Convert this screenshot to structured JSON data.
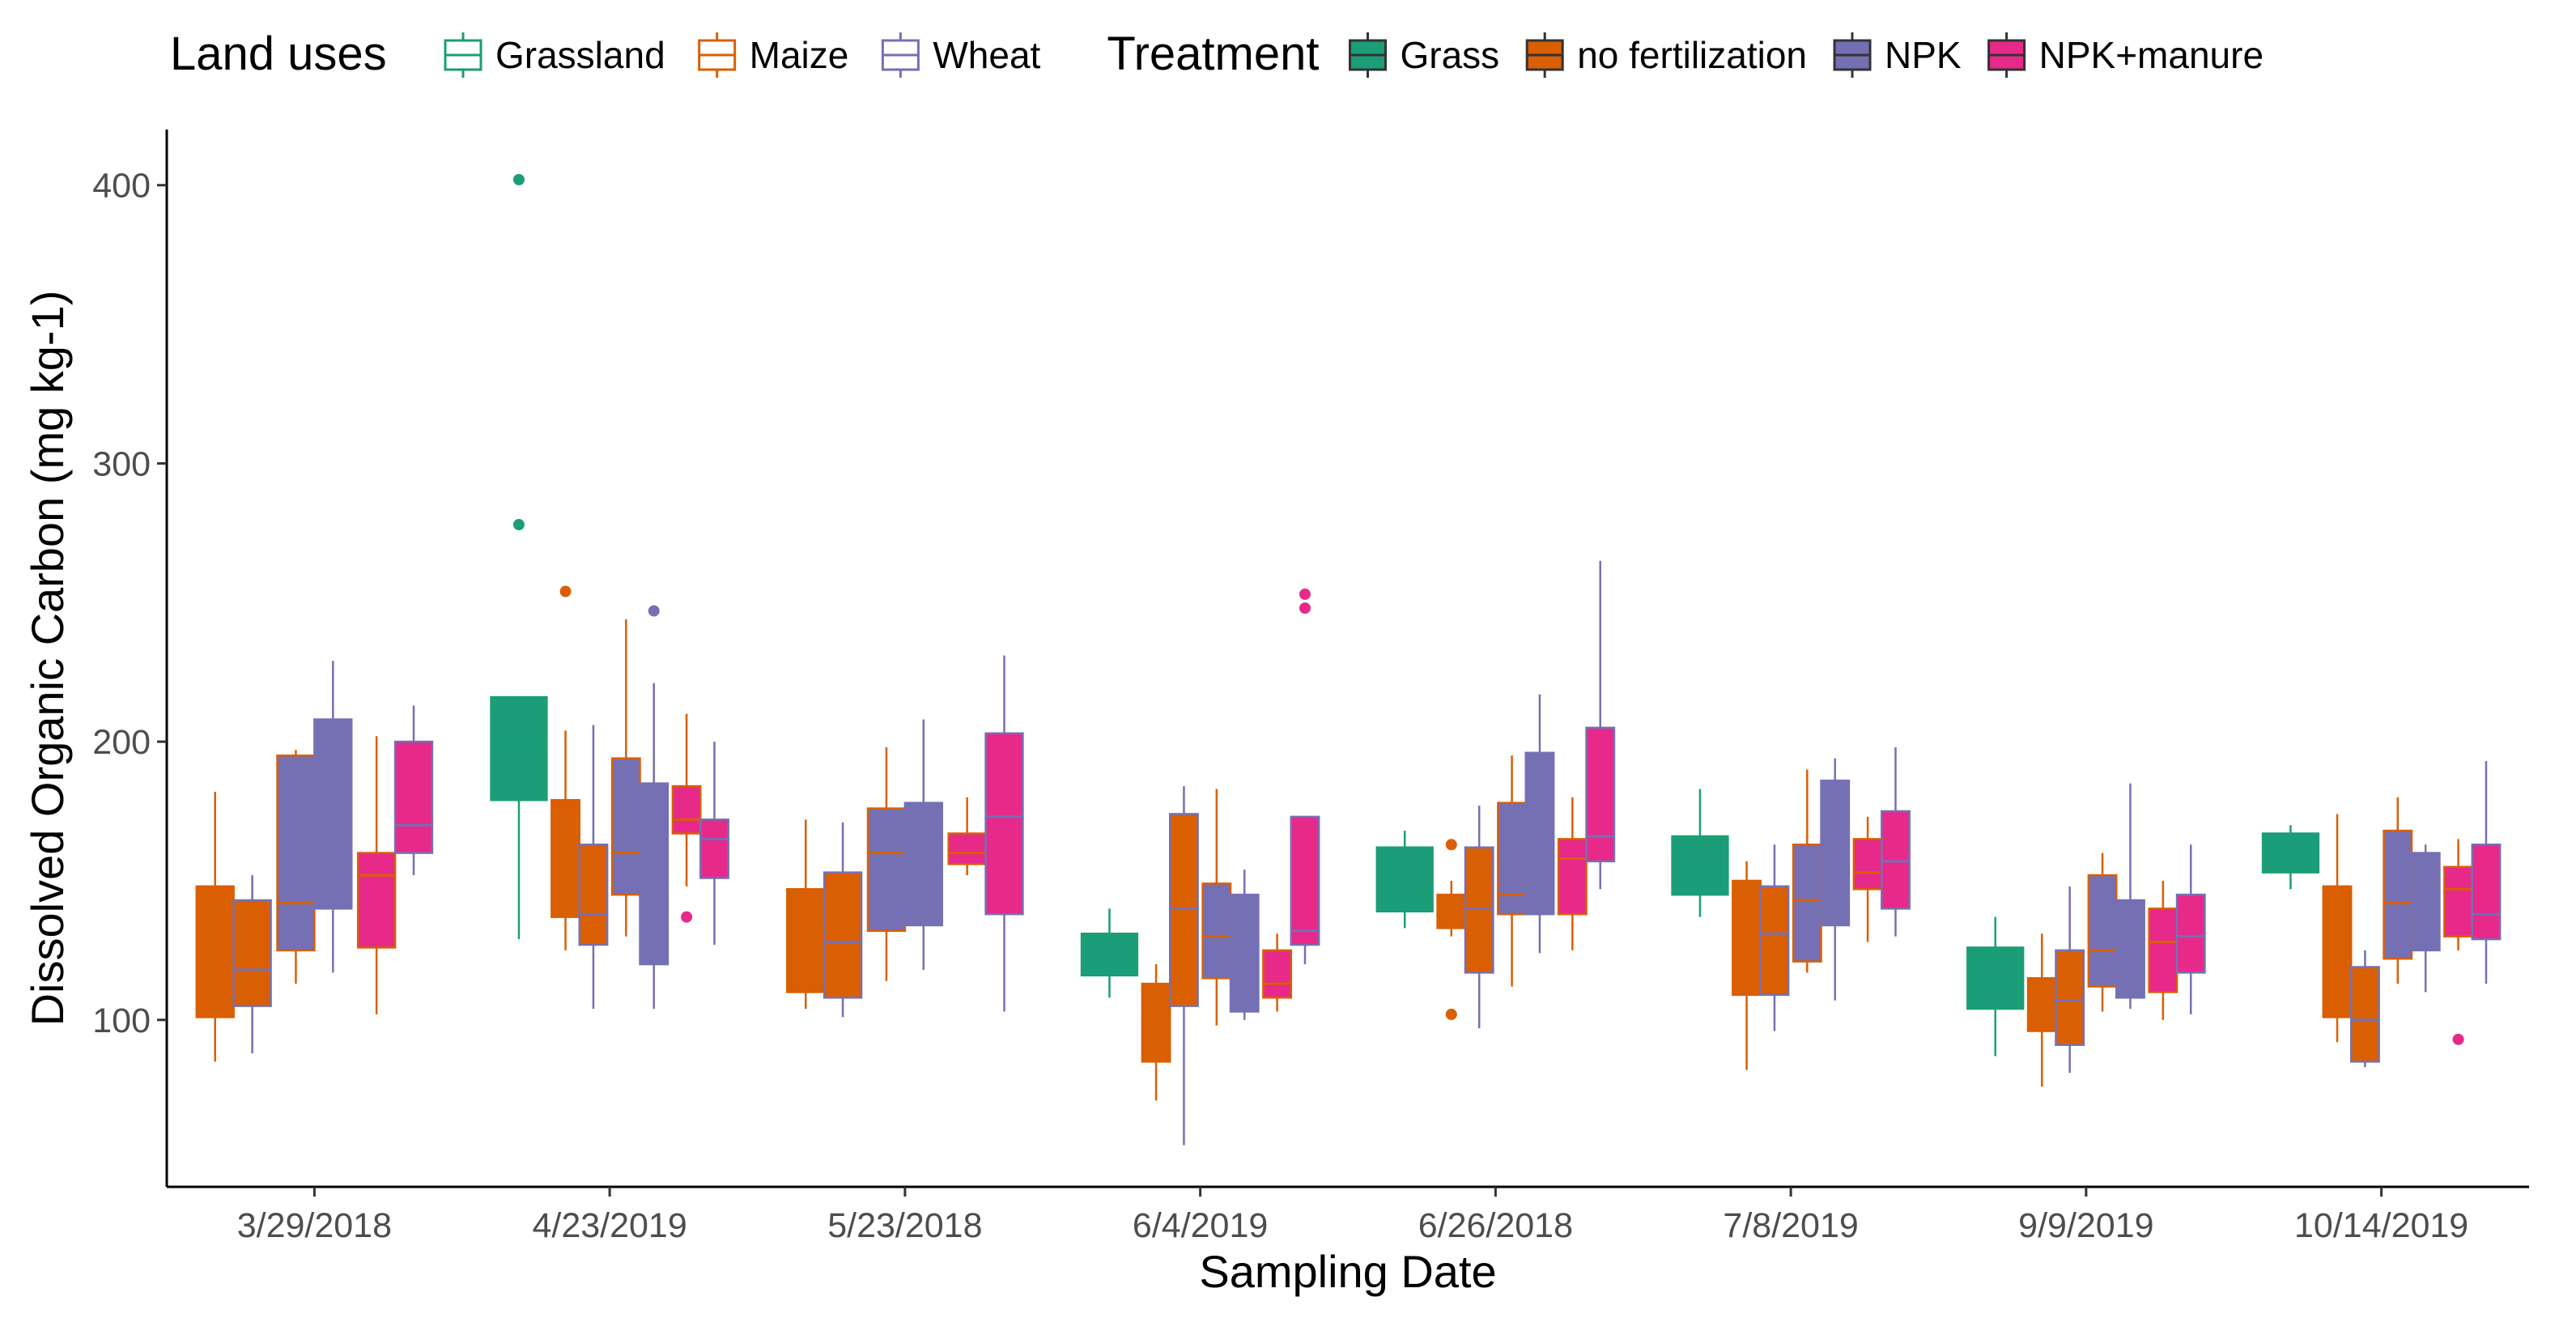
{
  "chart_data": {
    "type": "boxplot",
    "title": "",
    "xlabel": "Sampling Date",
    "ylabel": "Dissolved Organic Carbon (mg kg-1)",
    "ylim": [
      40,
      420
    ],
    "yticks": [
      100,
      200,
      300,
      400
    ],
    "grid": false,
    "legend_position": "top",
    "legend": {
      "land_uses": {
        "title": "Land uses",
        "items": [
          {
            "name": "Grassland",
            "color": "#1b9e77"
          },
          {
            "name": "Maize",
            "color": "#d95f02"
          },
          {
            "name": "Wheat",
            "color": "#7570b3"
          }
        ]
      },
      "treatment": {
        "title": "Treatment",
        "items": [
          {
            "name": "Grass",
            "color": "#1b9e77"
          },
          {
            "name": "no fertilization",
            "color": "#d95f02"
          },
          {
            "name": "NPK",
            "color": "#7570b3"
          },
          {
            "name": "NPK+manure",
            "color": "#e7298a"
          }
        ]
      }
    },
    "categories": [
      "3/29/2018",
      "4/23/2019",
      "5/23/2018",
      "6/4/2019",
      "6/26/2018",
      "7/8/2019",
      "9/9/2019",
      "10/14/2019"
    ],
    "groups": [
      {
        "date": "3/29/2018",
        "boxes": [
          {
            "treatment": "no fertilization",
            "land_use": "Maize",
            "min": 85,
            "q1": 101,
            "median": 125,
            "q3": 148,
            "max": 182,
            "outliers": []
          },
          {
            "treatment": "no fertilization",
            "land_use": "Wheat",
            "min": 88,
            "q1": 105,
            "median": 118,
            "q3": 143,
            "max": 152,
            "outliers": []
          },
          {
            "treatment": "NPK",
            "land_use": "Maize",
            "min": 113,
            "q1": 125,
            "median": 142,
            "q3": 195,
            "max": 197,
            "outliers": []
          },
          {
            "treatment": "NPK",
            "land_use": "Wheat",
            "min": 117,
            "q1": 140,
            "median": 155,
            "q3": 208,
            "max": 229,
            "outliers": []
          },
          {
            "treatment": "NPK+manure",
            "land_use": "Maize",
            "min": 102,
            "q1": 126,
            "median": 152,
            "q3": 160,
            "max": 202,
            "outliers": []
          },
          {
            "treatment": "NPK+manure",
            "land_use": "Wheat",
            "min": 152,
            "q1": 160,
            "median": 170,
            "q3": 200,
            "max": 213,
            "outliers": []
          }
        ]
      },
      {
        "date": "4/23/2019",
        "boxes": [
          {
            "treatment": "Grass",
            "land_use": "Grassland",
            "min": 129,
            "q1": 179,
            "median": 200,
            "q3": 216,
            "max": 216,
            "outliers": [
              278,
              402
            ]
          },
          {
            "treatment": "no fertilization",
            "land_use": "Maize",
            "min": 125,
            "q1": 137,
            "median": 152,
            "q3": 179,
            "max": 204,
            "outliers": [
              254
            ]
          },
          {
            "treatment": "no fertilization",
            "land_use": "Wheat",
            "min": 104,
            "q1": 127,
            "median": 138,
            "q3": 163,
            "max": 206,
            "outliers": []
          },
          {
            "treatment": "NPK",
            "land_use": "Maize",
            "min": 130,
            "q1": 145,
            "median": 160,
            "q3": 194,
            "max": 244,
            "outliers": []
          },
          {
            "treatment": "NPK",
            "land_use": "Wheat",
            "min": 104,
            "q1": 120,
            "median": 162,
            "q3": 185,
            "max": 221,
            "outliers": [
              247
            ]
          },
          {
            "treatment": "NPK+manure",
            "land_use": "Maize",
            "min": 148,
            "q1": 167,
            "median": 172,
            "q3": 184,
            "max": 210,
            "outliers": [
              137
            ]
          },
          {
            "treatment": "NPK+manure",
            "land_use": "Wheat",
            "min": 127,
            "q1": 151,
            "median": 165,
            "q3": 172,
            "max": 200,
            "outliers": []
          }
        ]
      },
      {
        "date": "5/23/2018",
        "boxes": [
          {
            "treatment": "no fertilization",
            "land_use": "Maize",
            "min": 104,
            "q1": 110,
            "median": 126,
            "q3": 147,
            "max": 172,
            "outliers": []
          },
          {
            "treatment": "no fertilization",
            "land_use": "Wheat",
            "min": 101,
            "q1": 108,
            "median": 128,
            "q3": 153,
            "max": 171,
            "outliers": []
          },
          {
            "treatment": "NPK",
            "land_use": "Maize",
            "min": 114,
            "q1": 132,
            "median": 160,
            "q3": 176,
            "max": 198,
            "outliers": []
          },
          {
            "treatment": "NPK",
            "land_use": "Wheat",
            "min": 118,
            "q1": 134,
            "median": 152,
            "q3": 178,
            "max": 208,
            "outliers": []
          },
          {
            "treatment": "NPK+manure",
            "land_use": "Maize",
            "min": 152,
            "q1": 156,
            "median": 160,
            "q3": 167,
            "max": 180,
            "outliers": []
          },
          {
            "treatment": "NPK+manure",
            "land_use": "Wheat",
            "min": 103,
            "q1": 138,
            "median": 173,
            "q3": 203,
            "max": 231,
            "outliers": []
          }
        ]
      },
      {
        "date": "6/4/2019",
        "boxes": [
          {
            "treatment": "Grass",
            "land_use": "Grassland",
            "min": 108,
            "q1": 116,
            "median": 120,
            "q3": 131,
            "max": 140,
            "outliers": []
          },
          {
            "treatment": "no fertilization",
            "land_use": "Maize",
            "min": 71,
            "q1": 85,
            "median": 100,
            "q3": 113,
            "max": 120,
            "outliers": []
          },
          {
            "treatment": "no fertilization",
            "land_use": "Wheat",
            "min": 55,
            "q1": 105,
            "median": 140,
            "q3": 174,
            "max": 184,
            "outliers": []
          },
          {
            "treatment": "NPK",
            "land_use": "Maize",
            "min": 98,
            "q1": 115,
            "median": 130,
            "q3": 149,
            "max": 183,
            "outliers": []
          },
          {
            "treatment": "NPK",
            "land_use": "Wheat",
            "min": 100,
            "q1": 103,
            "median": 128,
            "q3": 145,
            "max": 154,
            "outliers": []
          },
          {
            "treatment": "NPK+manure",
            "land_use": "Maize",
            "min": 103,
            "q1": 108,
            "median": 113,
            "q3": 125,
            "max": 131,
            "outliers": []
          },
          {
            "treatment": "NPK+manure",
            "land_use": "Wheat",
            "min": 120,
            "q1": 127,
            "median": 132,
            "q3": 173,
            "max": 173,
            "outliers": [
              248,
              253
            ]
          }
        ]
      },
      {
        "date": "6/26/2018",
        "boxes": [
          {
            "treatment": "Grass",
            "land_use": "Grassland",
            "min": 133,
            "q1": 139,
            "median": 150,
            "q3": 162,
            "max": 168,
            "outliers": []
          },
          {
            "treatment": "no fertilization",
            "land_use": "Maize",
            "min": 130,
            "q1": 133,
            "median": 140,
            "q3": 145,
            "max": 150,
            "outliers": [
              102,
              163
            ]
          },
          {
            "treatment": "no fertilization",
            "land_use": "Wheat",
            "min": 97,
            "q1": 117,
            "median": 140,
            "q3": 162,
            "max": 177,
            "outliers": []
          },
          {
            "treatment": "NPK",
            "land_use": "Maize",
            "min": 112,
            "q1": 138,
            "median": 145,
            "q3": 178,
            "max": 195,
            "outliers": []
          },
          {
            "treatment": "NPK",
            "land_use": "Wheat",
            "min": 124,
            "q1": 138,
            "median": 145,
            "q3": 196,
            "max": 217,
            "outliers": []
          },
          {
            "treatment": "NPK+manure",
            "land_use": "Maize",
            "min": 125,
            "q1": 138,
            "median": 158,
            "q3": 165,
            "max": 180,
            "outliers": []
          },
          {
            "treatment": "NPK+manure",
            "land_use": "Wheat",
            "min": 147,
            "q1": 157,
            "median": 166,
            "q3": 205,
            "max": 265,
            "outliers": []
          }
        ]
      },
      {
        "date": "7/8/2019",
        "boxes": [
          {
            "treatment": "Grass",
            "land_use": "Grassland",
            "min": 137,
            "q1": 145,
            "median": 155,
            "q3": 166,
            "max": 183,
            "outliers": []
          },
          {
            "treatment": "no fertilization",
            "land_use": "Maize",
            "min": 82,
            "q1": 109,
            "median": 129,
            "q3": 150,
            "max": 157,
            "outliers": []
          },
          {
            "treatment": "no fertilization",
            "land_use": "Wheat",
            "min": 96,
            "q1": 109,
            "median": 131,
            "q3": 148,
            "max": 163,
            "outliers": []
          },
          {
            "treatment": "NPK",
            "land_use": "Maize",
            "min": 117,
            "q1": 121,
            "median": 143,
            "q3": 163,
            "max": 190,
            "outliers": []
          },
          {
            "treatment": "NPK",
            "land_use": "Wheat",
            "min": 107,
            "q1": 134,
            "median": 158,
            "q3": 186,
            "max": 194,
            "outliers": []
          },
          {
            "treatment": "NPK+manure",
            "land_use": "Maize",
            "min": 128,
            "q1": 147,
            "median": 153,
            "q3": 165,
            "max": 173,
            "outliers": []
          },
          {
            "treatment": "NPK+manure",
            "land_use": "Wheat",
            "min": 130,
            "q1": 140,
            "median": 157,
            "q3": 175,
            "max": 198,
            "outliers": []
          }
        ]
      },
      {
        "date": "9/9/2019",
        "boxes": [
          {
            "treatment": "Grass",
            "land_use": "Grassland",
            "min": 87,
            "q1": 104,
            "median": 113,
            "q3": 126,
            "max": 137,
            "outliers": []
          },
          {
            "treatment": "no fertilization",
            "land_use": "Maize",
            "min": 76,
            "q1": 96,
            "median": 105,
            "q3": 115,
            "max": 131,
            "outliers": []
          },
          {
            "treatment": "no fertilization",
            "land_use": "Wheat",
            "min": 81,
            "q1": 91,
            "median": 107,
            "q3": 125,
            "max": 148,
            "outliers": []
          },
          {
            "treatment": "NPK",
            "land_use": "Maize",
            "min": 103,
            "q1": 112,
            "median": 125,
            "q3": 152,
            "max": 160,
            "outliers": []
          },
          {
            "treatment": "NPK",
            "land_use": "Wheat",
            "min": 104,
            "q1": 108,
            "median": 131,
            "q3": 143,
            "max": 185,
            "outliers": []
          },
          {
            "treatment": "NPK+manure",
            "land_use": "Maize",
            "min": 100,
            "q1": 110,
            "median": 128,
            "q3": 140,
            "max": 150,
            "outliers": []
          },
          {
            "treatment": "NPK+manure",
            "land_use": "Wheat",
            "min": 102,
            "q1": 117,
            "median": 130,
            "q3": 145,
            "max": 163,
            "outliers": []
          }
        ]
      },
      {
        "date": "10/14/2019",
        "boxes": [
          {
            "treatment": "Grass",
            "land_use": "Grassland",
            "min": 147,
            "q1": 153,
            "median": 160,
            "q3": 167,
            "max": 170,
            "outliers": []
          },
          {
            "treatment": "no fertilization",
            "land_use": "Maize",
            "min": 92,
            "q1": 101,
            "median": 112,
            "q3": 148,
            "max": 174,
            "outliers": []
          },
          {
            "treatment": "no fertilization",
            "land_use": "Wheat",
            "min": 83,
            "q1": 85,
            "median": 100,
            "q3": 119,
            "max": 125,
            "outliers": []
          },
          {
            "treatment": "NPK",
            "land_use": "Maize",
            "min": 113,
            "q1": 122,
            "median": 142,
            "q3": 168,
            "max": 180,
            "outliers": []
          },
          {
            "treatment": "NPK",
            "land_use": "Wheat",
            "min": 110,
            "q1": 125,
            "median": 145,
            "q3": 160,
            "max": 163,
            "outliers": []
          },
          {
            "treatment": "NPK+manure",
            "land_use": "Maize",
            "min": 125,
            "q1": 130,
            "median": 147,
            "q3": 155,
            "max": 165,
            "outliers": [
              93
            ]
          },
          {
            "treatment": "NPK+manure",
            "land_use": "Wheat",
            "min": 113,
            "q1": 129,
            "median": 138,
            "q3": 163,
            "max": 193,
            "outliers": []
          }
        ]
      }
    ]
  }
}
